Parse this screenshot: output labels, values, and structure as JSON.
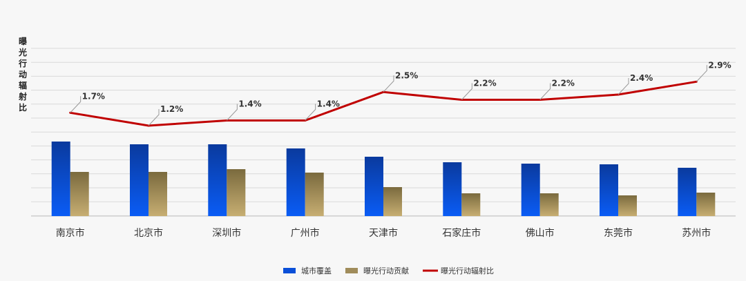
{
  "chart_data": {
    "type": "bar",
    "ylabel": "曝光行动辐射比",
    "categories": [
      "南京市",
      "北京市",
      "深圳市",
      "广州市",
      "天津市",
      "石家庄市",
      "佛山市",
      "东莞市",
      "苏州市"
    ],
    "series": [
      {
        "name": "城市覆盖",
        "type": "bar",
        "color": "#0a4fd8",
        "values": [
          5.4,
          5.2,
          5.2,
          4.9,
          4.3,
          3.9,
          3.8,
          3.75,
          3.5
        ]
      },
      {
        "name": "曝光行动贡献",
        "type": "bar",
        "color": "#a08c5b",
        "values": [
          3.2,
          3.2,
          3.4,
          3.15,
          2.1,
          1.65,
          1.65,
          1.5,
          1.7
        ]
      },
      {
        "name": "曝光行动辐射比",
        "type": "line",
        "color": "#c00000",
        "values": [
          1.7,
          1.2,
          1.4,
          1.4,
          2.5,
          2.2,
          2.2,
          2.4,
          2.9
        ],
        "labels": [
          "1.7%",
          "1.2%",
          "1.4%",
          "1.4%",
          "2.5%",
          "2.2%",
          "2.2%",
          "2.4%",
          "2.9%"
        ]
      }
    ],
    "grid": true,
    "legend": "bottom"
  }
}
